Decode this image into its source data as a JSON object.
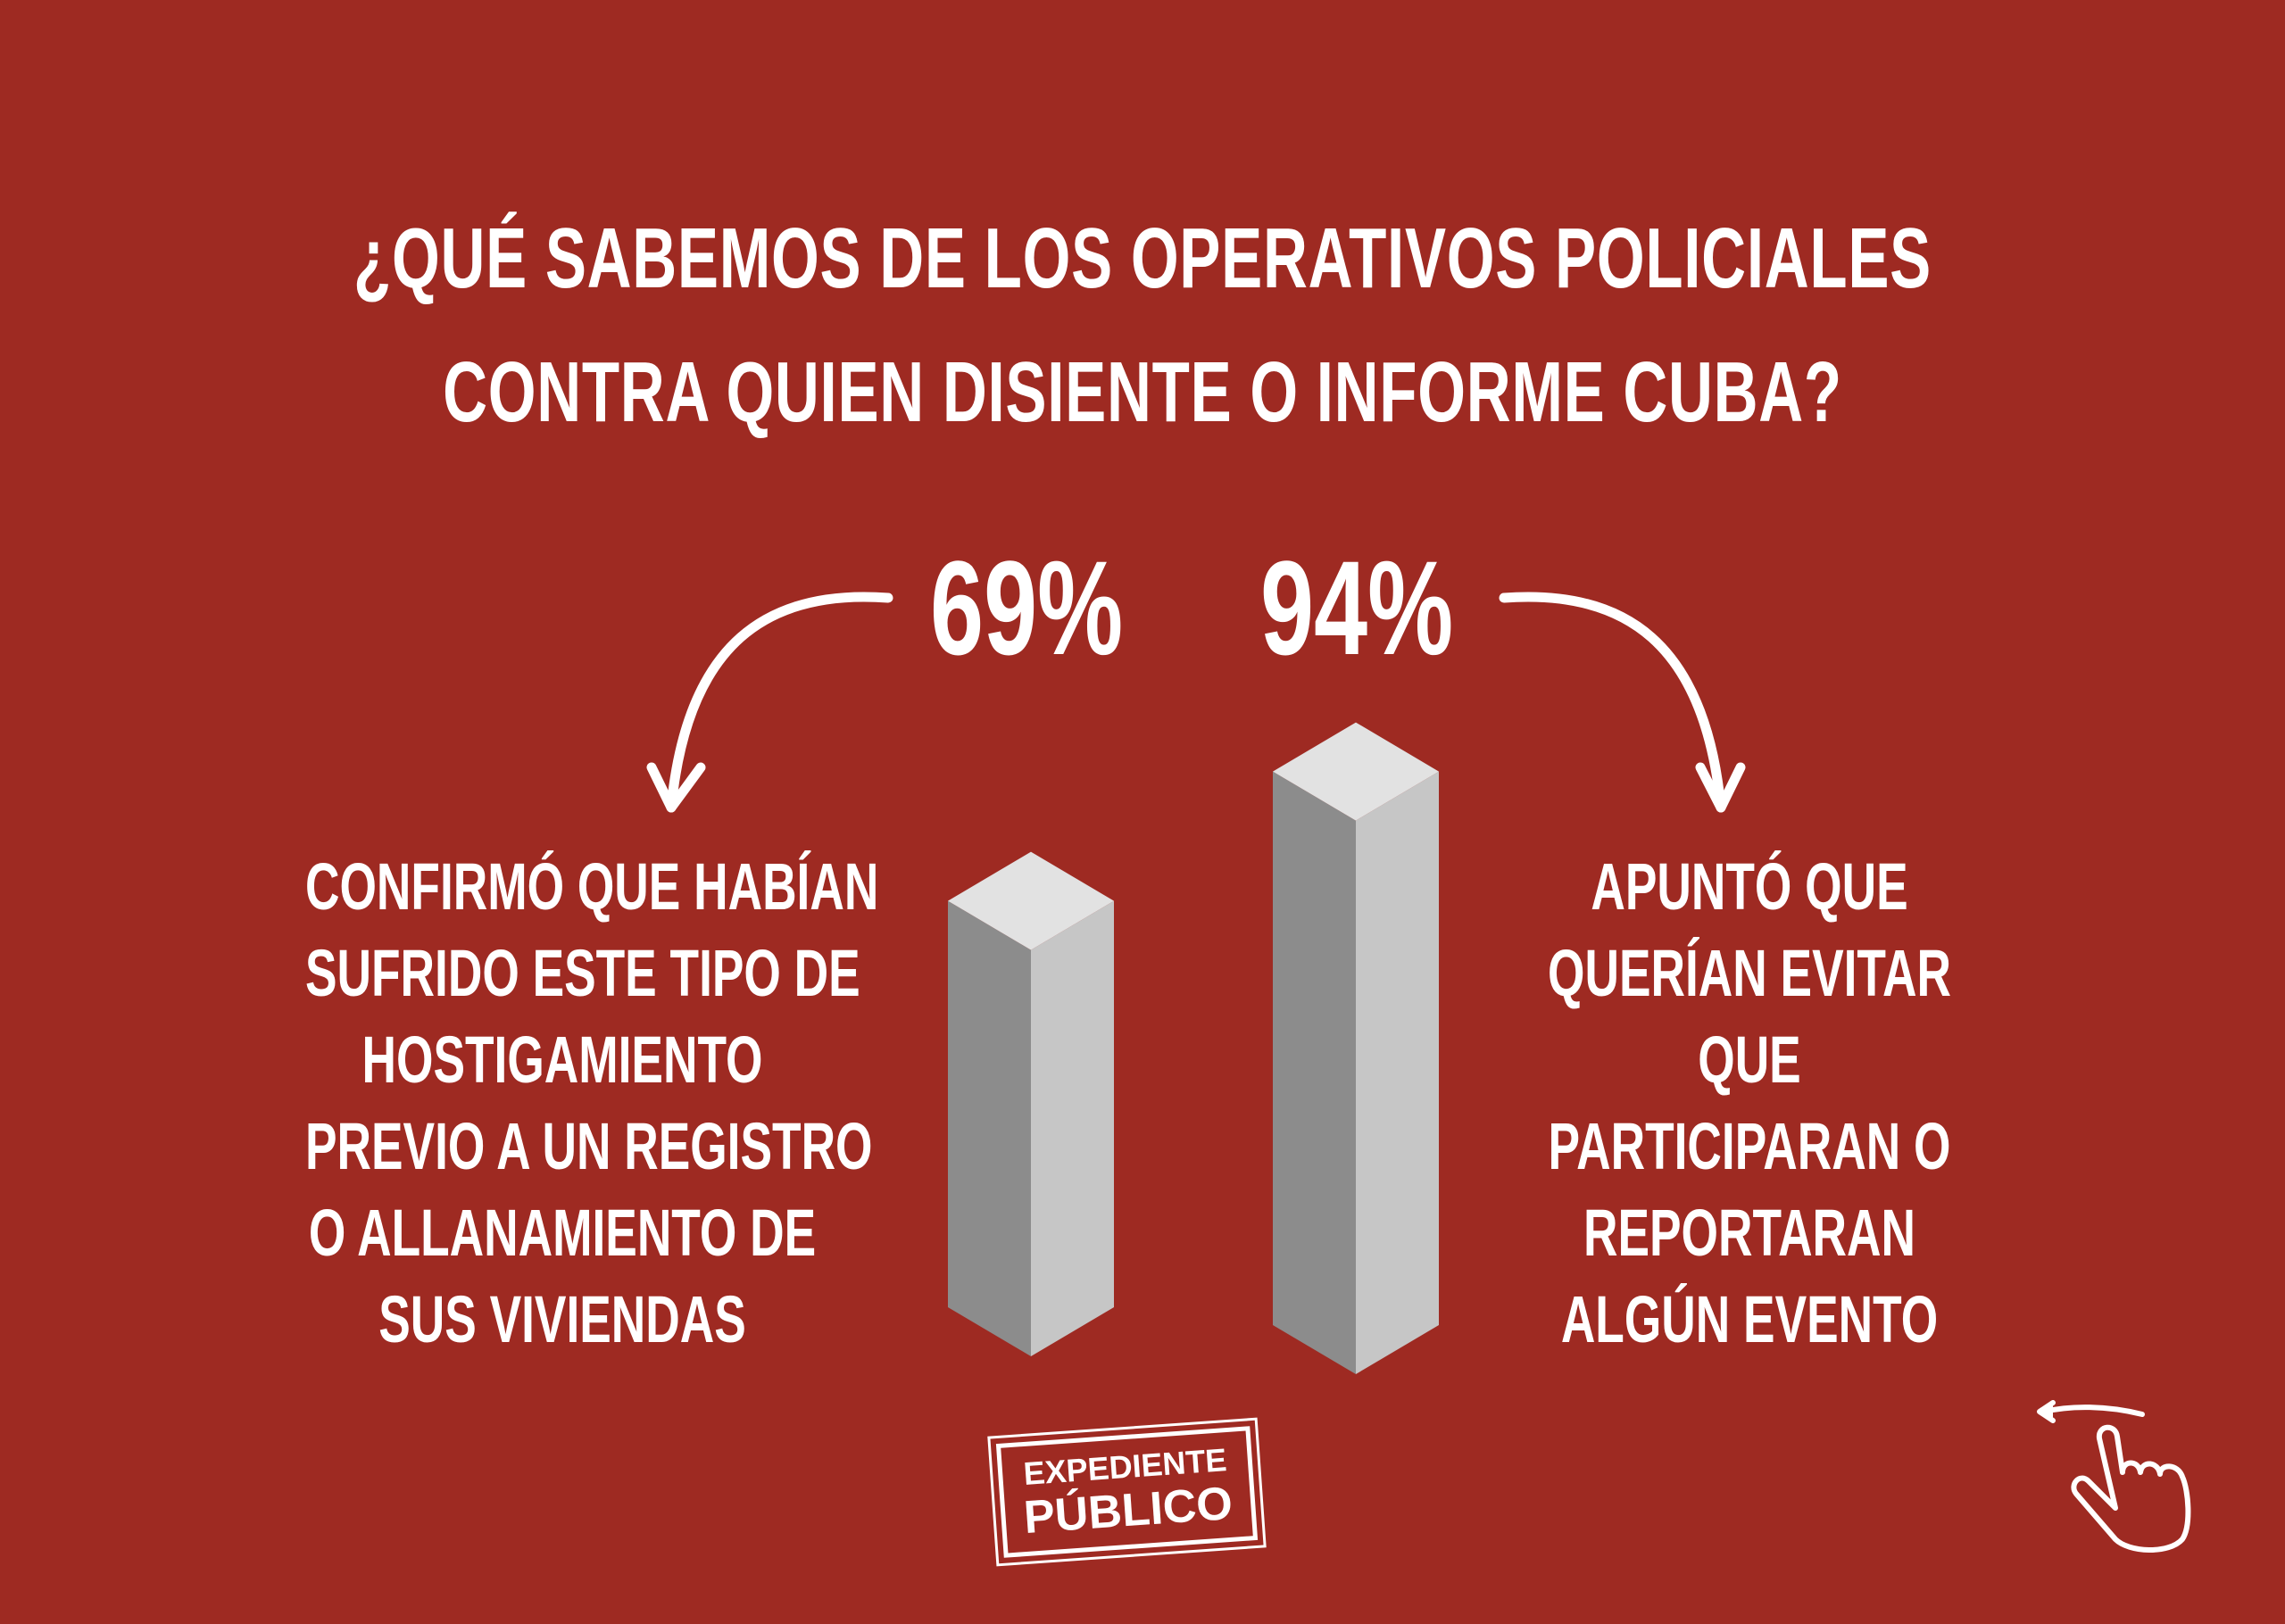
{
  "title": {
    "line1": "¿QUÉ SABEMOS DE LOS OPERATIVOS POLICIALES",
    "line2": "CONTRA QUIEN DISIENTE O INFORME CUBA?"
  },
  "chart_data": {
    "type": "bar",
    "title": "¿QUÉ SABEMOS DE LOS OPERATIVOS POLICIALES CONTRA QUIEN DISIENTE O INFORME CUBA?",
    "categories": [
      "Hostigamiento previo a registro o allanamiento",
      "Evitar que participaran o reportaran algún evento"
    ],
    "values": [
      69,
      94
    ],
    "data_labels": [
      "69%",
      "94%"
    ],
    "ylim": [
      0,
      100
    ],
    "xlabel": "",
    "ylabel": "",
    "grid": false
  },
  "left_description": [
    "CONFIRMÓ QUE HABÍAN",
    "SUFRIDO ESTE TIPO DE",
    "HOSTIGAMIENTO",
    "PREVIO A UN REGISTRO",
    "O ALLANAMIENTO DE",
    "SUS VIVIENDAS"
  ],
  "right_description": [
    "APUNTÓ QUE",
    "QUERÍAN EVITAR",
    "QUE",
    "PARTICIPARAN O",
    "REPORTARAN",
    "ALGÚN EVENTO"
  ],
  "logo": {
    "line1": "EXPEDIENTE",
    "line2": "PÚBLICO"
  },
  "colors": {
    "background": "#9e2a22",
    "bar_dark": "#8c8c8c",
    "bar_light": "#c6c6c6",
    "bar_top": "#e2e2e2"
  },
  "icons": [
    "curved-arrow",
    "swipe-hand-icon"
  ]
}
